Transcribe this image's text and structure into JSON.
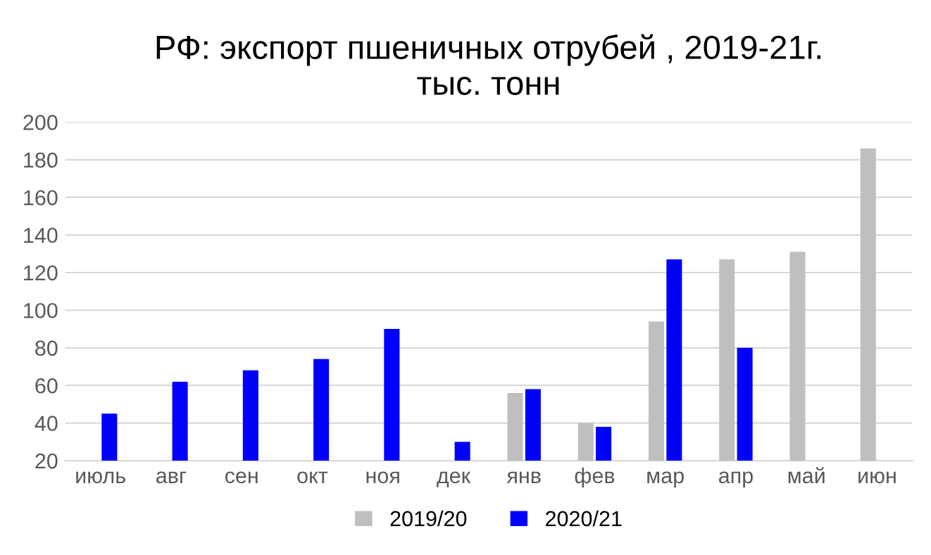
{
  "chart_data": {
    "type": "bar",
    "title": "РФ: экспорт пшеничных отрубей , 2019-21г.\nтыс. тонн",
    "categories": [
      "июль",
      "авг",
      "сен",
      "окт",
      "ноя",
      "дек",
      "янв",
      "фев",
      "мар",
      "апр",
      "май",
      "июн"
    ],
    "series": [
      {
        "name": "2019/20",
        "color": "#bfbfbf",
        "values": [
          null,
          null,
          null,
          null,
          null,
          null,
          56,
          40,
          94,
          127,
          131,
          186
        ]
      },
      {
        "name": "2020/21",
        "color": "#0000ff",
        "values": [
          45,
          62,
          68,
          74,
          90,
          30,
          58,
          38,
          127,
          80,
          null,
          null
        ]
      }
    ],
    "ylim": [
      20,
      200
    ],
    "yticks": [
      20,
      40,
      60,
      80,
      100,
      120,
      140,
      160,
      180,
      200
    ],
    "grid": "y",
    "legend": "bottom"
  }
}
